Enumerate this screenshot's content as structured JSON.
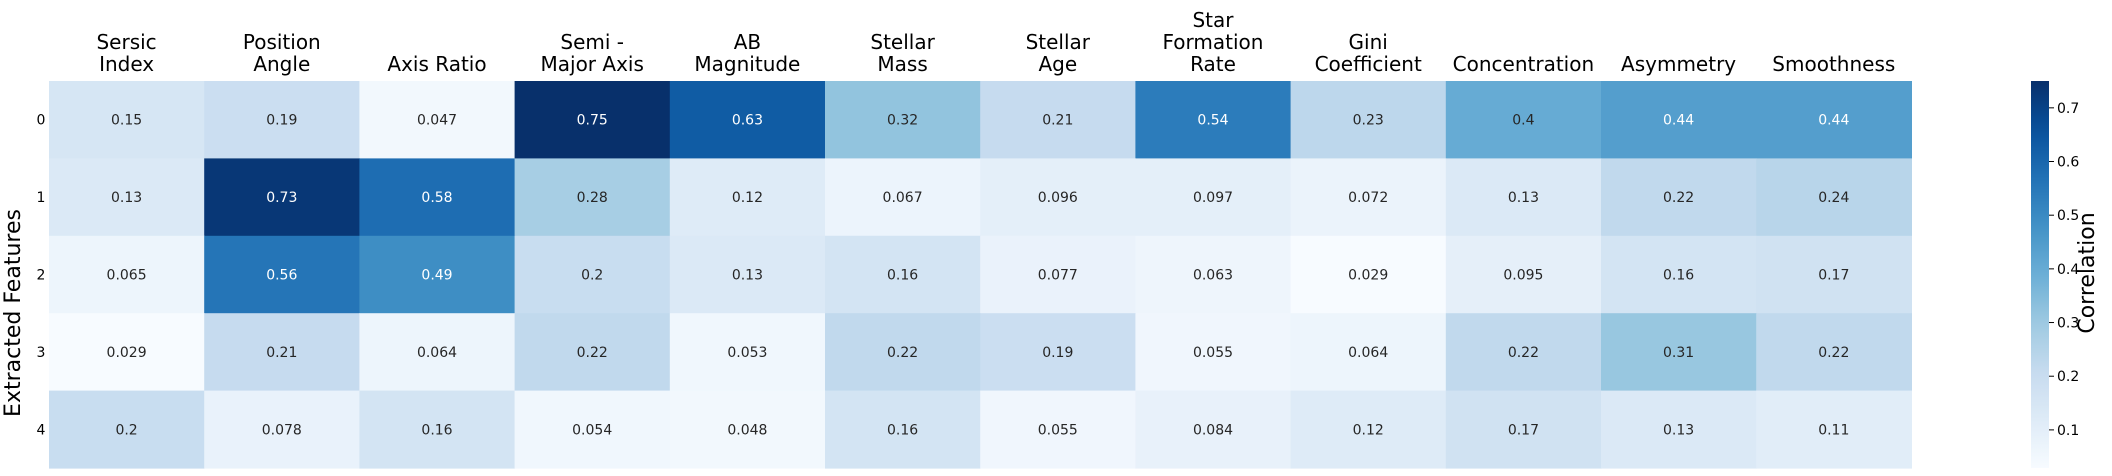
{
  "chart_data": {
    "type": "heatmap",
    "title": "",
    "xlabel": "",
    "ylabel": "Extracted Features",
    "columns": [
      [
        "Sersic",
        "Index"
      ],
      [
        "Position",
        "Angle"
      ],
      [
        "Axis Ratio"
      ],
      [
        "Semi -",
        "Major Axis"
      ],
      [
        "AB",
        "Magnitude"
      ],
      [
        "Stellar",
        "Mass"
      ],
      [
        "Stellar",
        "Age"
      ],
      [
        "Star",
        "Formation",
        "Rate"
      ],
      [
        "Gini",
        "Coefficient"
      ],
      [
        "Concentration"
      ],
      [
        "Asymmetry"
      ],
      [
        "Smoothness"
      ]
    ],
    "rows": [
      "0",
      "1",
      "2",
      "3",
      "4"
    ],
    "values": [
      [
        0.15,
        0.19,
        0.047,
        0.75,
        0.63,
        0.32,
        0.21,
        0.54,
        0.23,
        0.4,
        0.44,
        0.44
      ],
      [
        0.13,
        0.73,
        0.58,
        0.28,
        0.12,
        0.067,
        0.096,
        0.097,
        0.072,
        0.13,
        0.22,
        0.24
      ],
      [
        0.065,
        0.56,
        0.49,
        0.2,
        0.13,
        0.16,
        0.077,
        0.063,
        0.029,
        0.095,
        0.16,
        0.17
      ],
      [
        0.029,
        0.21,
        0.064,
        0.22,
        0.053,
        0.22,
        0.19,
        0.055,
        0.064,
        0.22,
        0.31,
        0.22
      ],
      [
        0.2,
        0.078,
        0.16,
        0.054,
        0.048,
        0.16,
        0.055,
        0.084,
        0.12,
        0.17,
        0.13,
        0.11
      ]
    ],
    "colorbar": {
      "label": "Correlation",
      "vmin": 0.029,
      "vmax": 0.75,
      "ticks": [
        0.1,
        0.2,
        0.3,
        0.4,
        0.5,
        0.6,
        0.7
      ],
      "colormap": "Blues"
    },
    "grid": false
  }
}
